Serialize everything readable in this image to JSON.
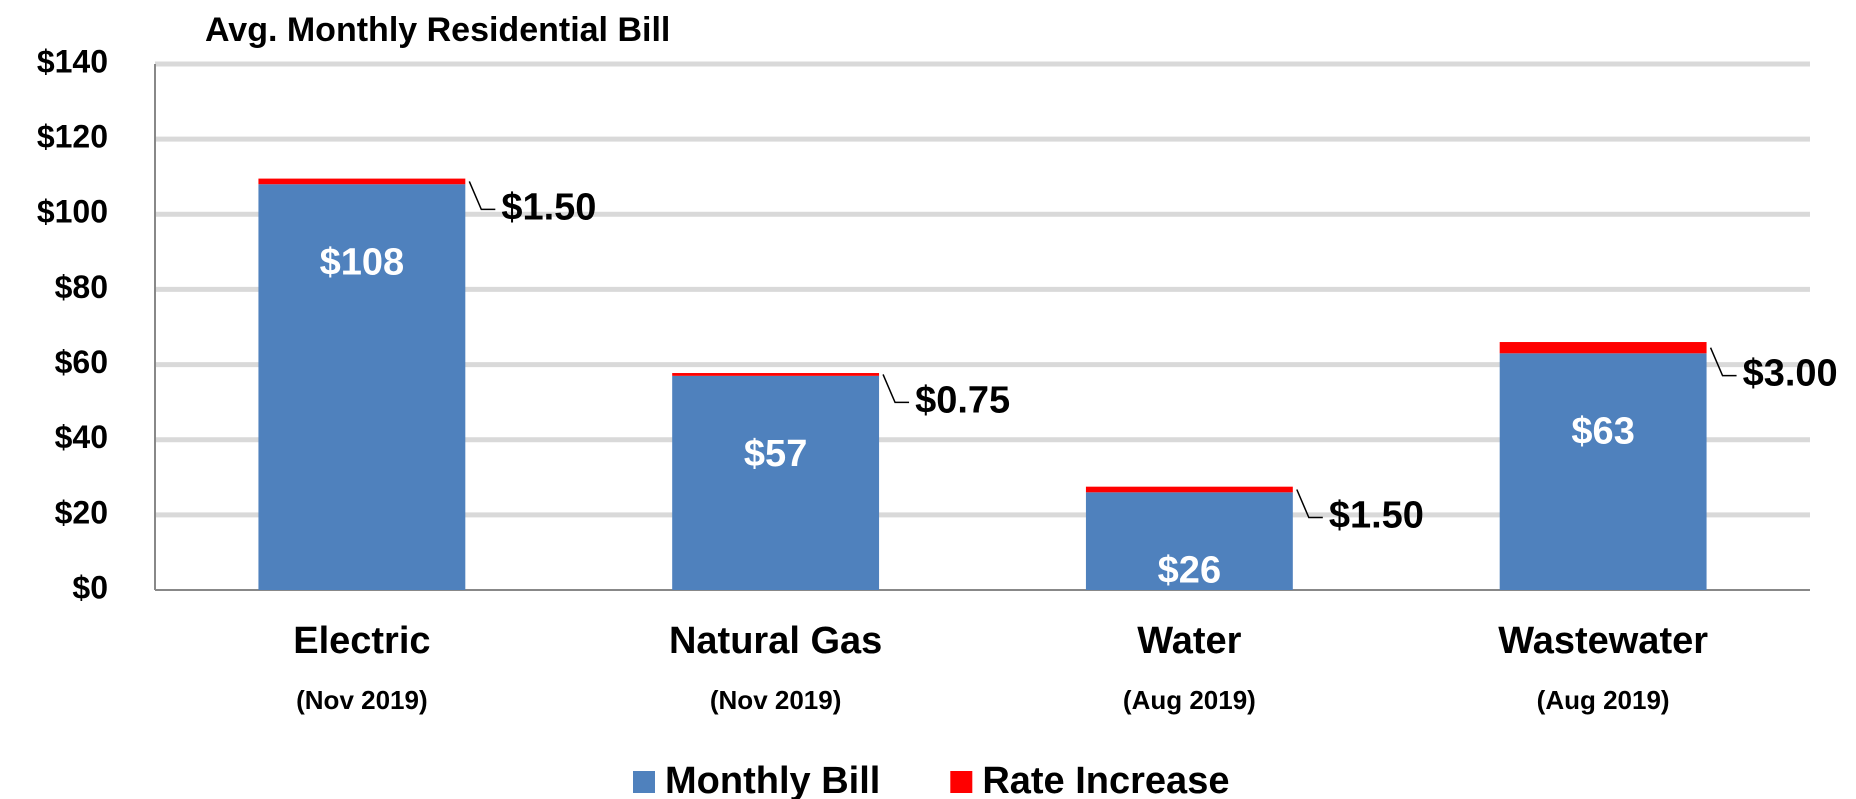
{
  "chart_data": {
    "type": "stacked_bar",
    "title": "Avg. Monthly Residential Bill",
    "categories": [
      "Electric",
      "Natural Gas",
      "Water",
      "Wastewater"
    ],
    "category_dates": [
      "(Nov 2019)",
      "(Nov 2019)",
      "(Aug 2019)",
      "(Aug 2019)"
    ],
    "series": [
      {
        "name": "Monthly Bill",
        "color": "#4f81bd",
        "values": [
          108,
          57,
          26,
          63
        ],
        "value_labels": [
          "$108",
          "$57",
          "$26",
          "$63"
        ]
      },
      {
        "name": "Rate Increase",
        "color": "#ff0000",
        "values": [
          1.5,
          0.75,
          1.5,
          3
        ],
        "value_labels": [
          "$1.50",
          "$0.75",
          "$1.50",
          "$3.00"
        ]
      }
    ],
    "ylim": [
      0,
      140
    ],
    "yticks": [
      {
        "value": 0,
        "label": "$0"
      },
      {
        "value": 20,
        "label": "$20"
      },
      {
        "value": 40,
        "label": "$40"
      },
      {
        "value": 60,
        "label": "$60"
      },
      {
        "value": 80,
        "label": "$80"
      },
      {
        "value": 100,
        "label": "$100"
      },
      {
        "value": 120,
        "label": "$120"
      },
      {
        "value": 140,
        "label": "$140"
      }
    ],
    "grid": true,
    "legend": "bottom"
  }
}
